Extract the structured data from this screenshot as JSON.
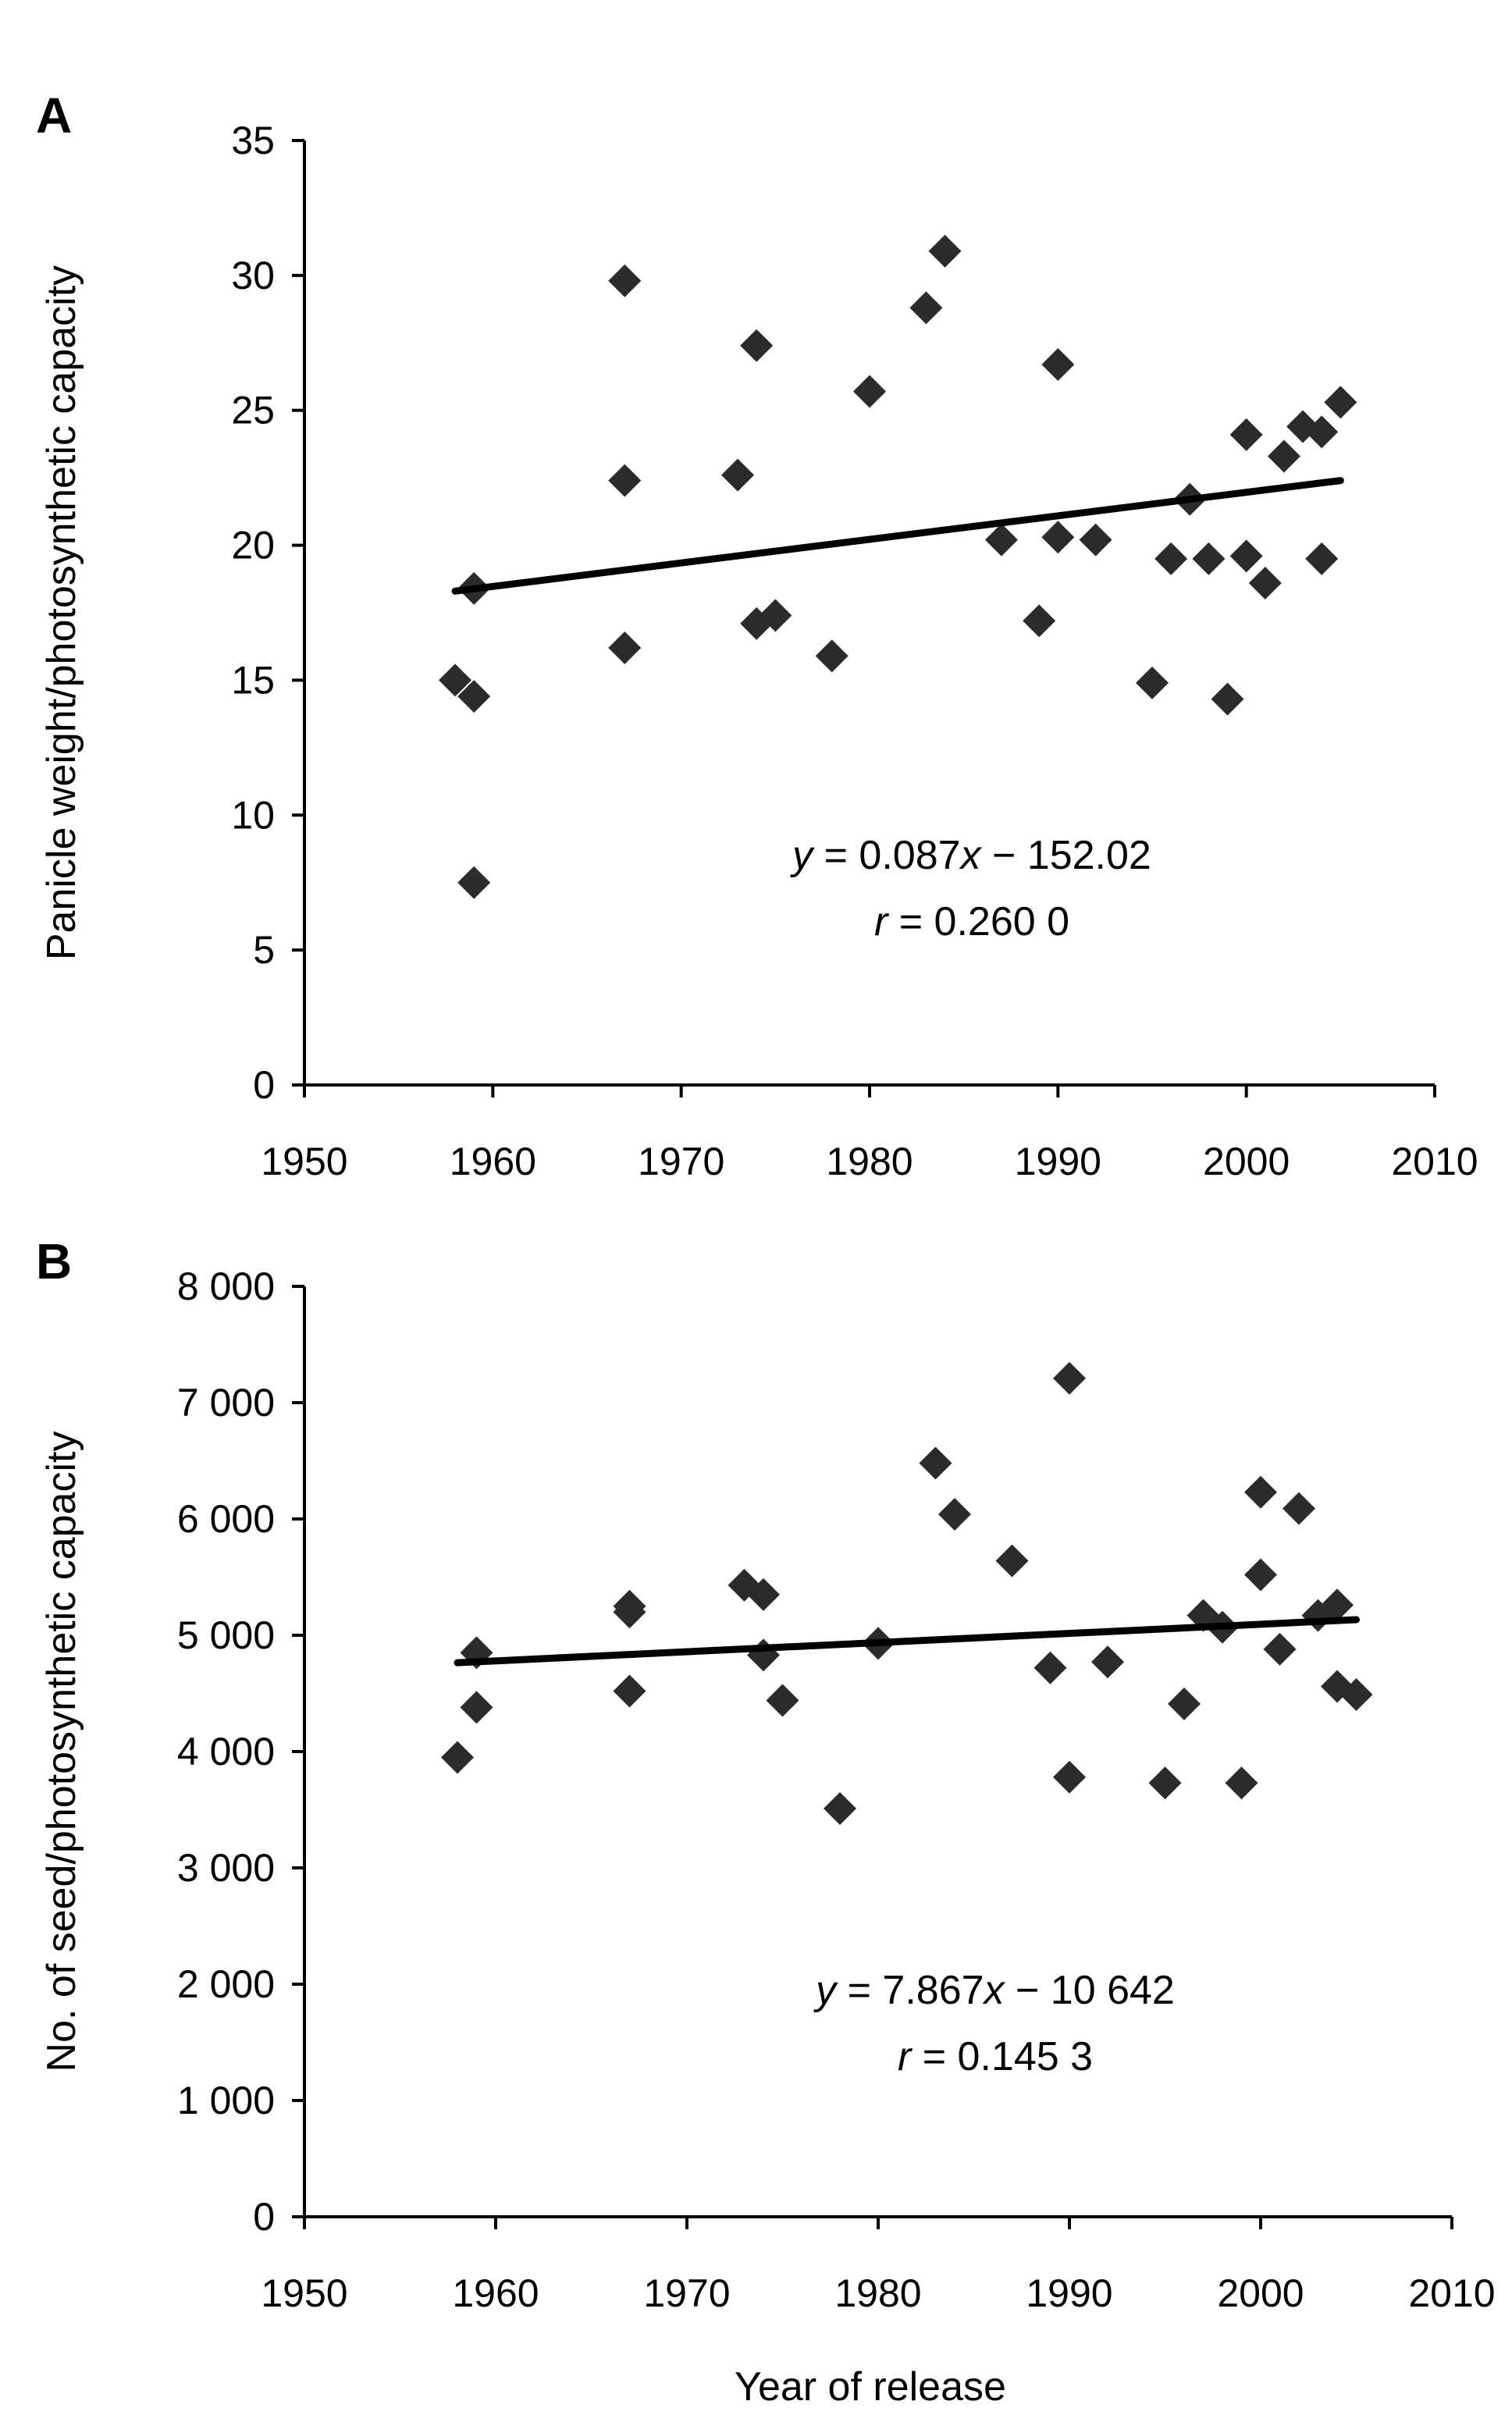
{
  "chart_data": [
    {
      "type": "scatter",
      "panel": "A",
      "ylabel": "Panicle weight/photosynthetic capacity",
      "xlabel": "",
      "xlim": [
        1950,
        2010
      ],
      "ylim": [
        0,
        35
      ],
      "x_ticks": [
        1950,
        1960,
        1970,
        1980,
        1990,
        2000,
        2010
      ],
      "x_tick_labels": [
        "1950",
        "1960",
        "1970",
        "1980",
        "1990",
        "2000",
        "2010"
      ],
      "y_ticks": [
        0,
        5,
        10,
        15,
        20,
        25,
        30,
        35
      ],
      "y_tick_labels": [
        "0",
        "5",
        "10",
        "15",
        "20",
        "25",
        "30",
        "35"
      ],
      "grid": false,
      "marker": "diamond",
      "points": [
        {
          "x": 1958,
          "y": 15.0
        },
        {
          "x": 1959,
          "y": 14.4
        },
        {
          "x": 1959,
          "y": 18.4
        },
        {
          "x": 1959,
          "y": 7.5
        },
        {
          "x": 1967,
          "y": 29.8
        },
        {
          "x": 1967,
          "y": 22.4
        },
        {
          "x": 1967,
          "y": 16.2
        },
        {
          "x": 1973,
          "y": 22.6
        },
        {
          "x": 1974,
          "y": 27.4
        },
        {
          "x": 1974,
          "y": 17.1
        },
        {
          "x": 1975,
          "y": 17.4
        },
        {
          "x": 1978,
          "y": 15.9
        },
        {
          "x": 1980,
          "y": 25.7
        },
        {
          "x": 1983,
          "y": 28.8
        },
        {
          "x": 1984,
          "y": 30.9
        },
        {
          "x": 1987,
          "y": 20.2
        },
        {
          "x": 1989,
          "y": 17.2
        },
        {
          "x": 1990,
          "y": 26.7
        },
        {
          "x": 1990,
          "y": 20.3
        },
        {
          "x": 1992,
          "y": 20.2
        },
        {
          "x": 1995,
          "y": 14.9
        },
        {
          "x": 1996,
          "y": 19.5
        },
        {
          "x": 1997,
          "y": 21.7
        },
        {
          "x": 1998,
          "y": 19.5
        },
        {
          "x": 1999,
          "y": 14.3
        },
        {
          "x": 2000,
          "y": 24.1
        },
        {
          "x": 2000,
          "y": 19.6
        },
        {
          "x": 2001,
          "y": 18.6
        },
        {
          "x": 2002,
          "y": 23.3
        },
        {
          "x": 2003,
          "y": 24.4
        },
        {
          "x": 2004,
          "y": 24.2
        },
        {
          "x": 2004,
          "y": 19.5
        },
        {
          "x": 2005,
          "y": 25.3
        }
      ],
      "trendline": {
        "x": [
          1958,
          2005
        ],
        "y": [
          18.3,
          22.4
        ]
      },
      "equation_prefix": "y",
      "equation_rest": " = 0.087",
      "equation_var": "x",
      "equation_tail": " − 152.02",
      "r_prefix": "r",
      "r_rest": " = 0.260 0"
    },
    {
      "type": "scatter",
      "panel": "B",
      "ylabel": "No. of seed/photosynthetic capacity",
      "xlabel": "Year of release",
      "xlim": [
        1950,
        2010
      ],
      "ylim": [
        0,
        8000
      ],
      "x_ticks": [
        1950,
        1960,
        1970,
        1980,
        1990,
        2000,
        2010
      ],
      "x_tick_labels": [
        "1950",
        "1960",
        "1970",
        "1980",
        "1990",
        "2000",
        "2010"
      ],
      "y_ticks": [
        0,
        1000,
        2000,
        3000,
        4000,
        5000,
        6000,
        7000,
        8000
      ],
      "y_tick_labels": [
        "0",
        "1 000",
        "2 000",
        "3 000",
        "4 000",
        "5 000",
        "6 000",
        "7 000",
        "8 000"
      ],
      "grid": false,
      "marker": "diamond",
      "points": [
        {
          "x": 1958,
          "y": 3950
        },
        {
          "x": 1959,
          "y": 4380
        },
        {
          "x": 1959,
          "y": 4850
        },
        {
          "x": 1967,
          "y": 5250
        },
        {
          "x": 1967,
          "y": 5200
        },
        {
          "x": 1967,
          "y": 4520
        },
        {
          "x": 1973,
          "y": 5430
        },
        {
          "x": 1974,
          "y": 5350
        },
        {
          "x": 1974,
          "y": 4830
        },
        {
          "x": 1975,
          "y": 4440
        },
        {
          "x": 1978,
          "y": 3510
        },
        {
          "x": 1980,
          "y": 4930
        },
        {
          "x": 1983,
          "y": 6480
        },
        {
          "x": 1984,
          "y": 6040
        },
        {
          "x": 1987,
          "y": 5640
        },
        {
          "x": 1989,
          "y": 4720
        },
        {
          "x": 1990,
          "y": 7210
        },
        {
          "x": 1990,
          "y": 3780
        },
        {
          "x": 1992,
          "y": 4770
        },
        {
          "x": 1995,
          "y": 3730
        },
        {
          "x": 1996,
          "y": 4410
        },
        {
          "x": 1997,
          "y": 5170
        },
        {
          "x": 1998,
          "y": 5070
        },
        {
          "x": 1999,
          "y": 3730
        },
        {
          "x": 2000,
          "y": 6230
        },
        {
          "x": 2000,
          "y": 5520
        },
        {
          "x": 2001,
          "y": 4880
        },
        {
          "x": 2002,
          "y": 6090
        },
        {
          "x": 2003,
          "y": 5170
        },
        {
          "x": 2004,
          "y": 5260
        },
        {
          "x": 2004,
          "y": 4560
        },
        {
          "x": 2005,
          "y": 4490
        }
      ],
      "trendline": {
        "x": [
          1958,
          2005
        ],
        "y": [
          4764,
          5134
        ]
      },
      "equation_prefix": "y",
      "equation_rest": " = 7.867",
      "equation_var": "x",
      "equation_tail": " − 10 642",
      "r_prefix": "r",
      "r_rest": " = 0.145 3"
    }
  ],
  "colors": {
    "marker": "#2b2b2b",
    "line": "#000000",
    "background": "#ffffff"
  }
}
